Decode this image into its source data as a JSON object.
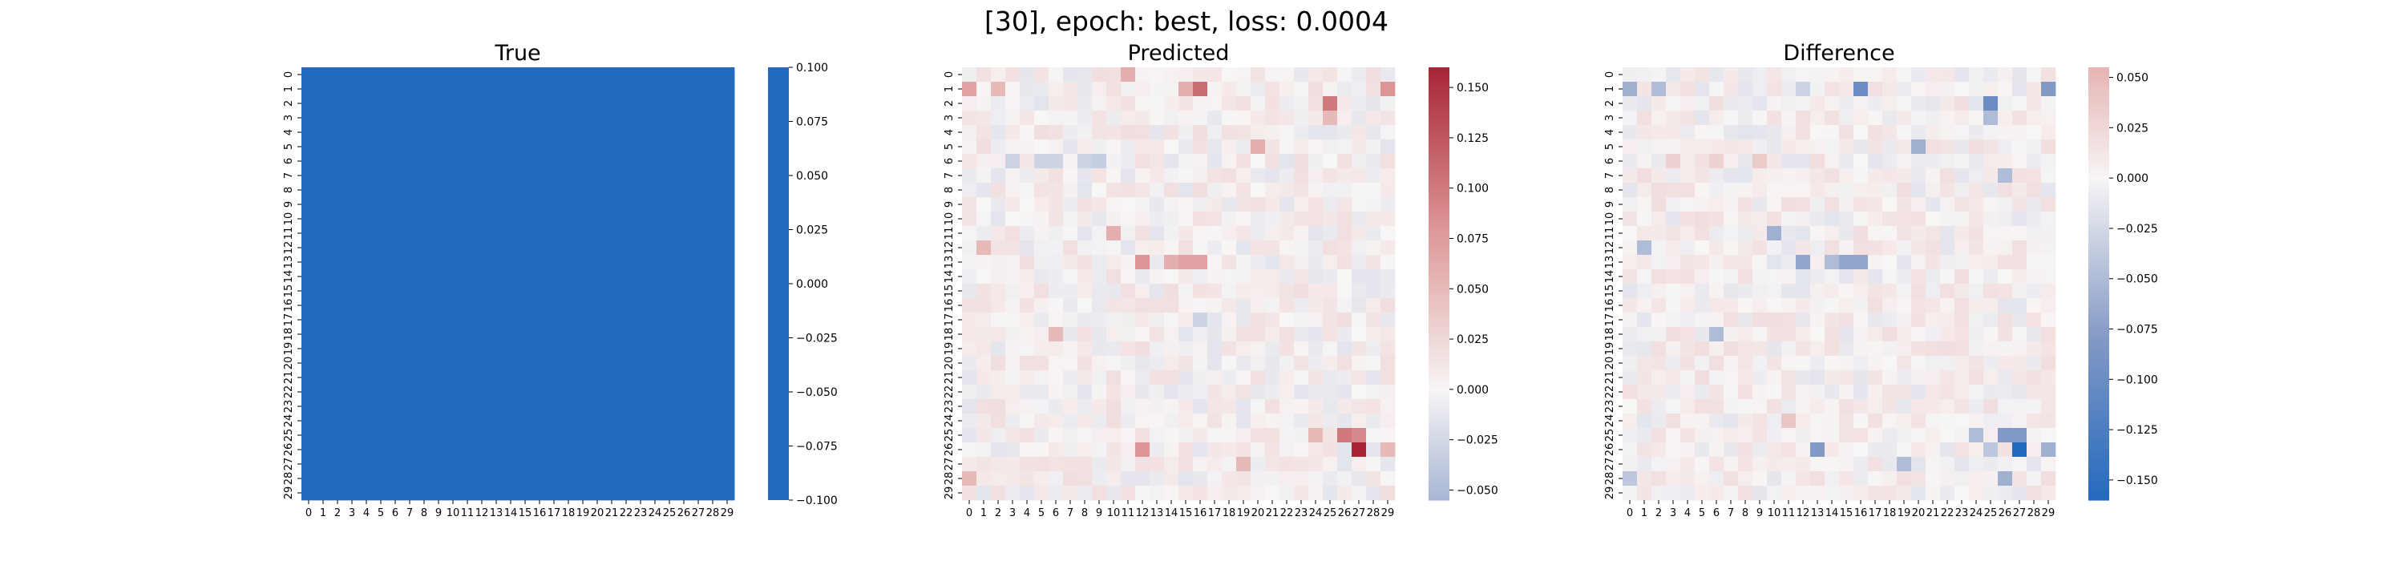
{
  "figure": {
    "suptitle": "[30], epoch: best, loss: 0.0004"
  },
  "chart_data": [
    {
      "type": "heatmap",
      "title": "True",
      "rows": 30,
      "cols": 30,
      "x_ticks": [
        "0",
        "1",
        "2",
        "3",
        "4",
        "5",
        "6",
        "7",
        "8",
        "9",
        "10",
        "11",
        "12",
        "13",
        "14",
        "15",
        "16",
        "17",
        "18",
        "19",
        "20",
        "21",
        "22",
        "23",
        "24",
        "25",
        "26",
        "27",
        "28",
        "29"
      ],
      "y_ticks": [
        "0",
        "1",
        "2",
        "3",
        "4",
        "5",
        "6",
        "7",
        "8",
        "9",
        "10",
        "11",
        "12",
        "13",
        "14",
        "15",
        "16",
        "17",
        "18",
        "19",
        "20",
        "21",
        "22",
        "23",
        "24",
        "25",
        "26",
        "27",
        "28",
        "29"
      ],
      "colormap": "vlag",
      "constant_value": 0.0,
      "cell_color": "#2369bd",
      "vmin": -0.1,
      "vmax": 0.1,
      "colorbar_ticks": [
        "0.100",
        "0.075",
        "0.050",
        "0.025",
        "0.000",
        "−0.025",
        "−0.050",
        "−0.075",
        "−0.100"
      ]
    },
    {
      "type": "heatmap",
      "title": "Predicted",
      "rows": 30,
      "cols": 30,
      "x_ticks": [
        "0",
        "1",
        "2",
        "3",
        "4",
        "5",
        "6",
        "7",
        "8",
        "9",
        "10",
        "11",
        "12",
        "13",
        "14",
        "15",
        "16",
        "17",
        "18",
        "19",
        "20",
        "21",
        "22",
        "23",
        "24",
        "25",
        "26",
        "27",
        "28",
        "29"
      ],
      "y_ticks": [
        "0",
        "1",
        "2",
        "3",
        "4",
        "5",
        "6",
        "7",
        "8",
        "9",
        "10",
        "11",
        "12",
        "13",
        "14",
        "15",
        "16",
        "17",
        "18",
        "19",
        "20",
        "21",
        "22",
        "23",
        "24",
        "25",
        "26",
        "27",
        "28",
        "29"
      ],
      "colormap": "vlag",
      "vmin": -0.055,
      "vmax": 0.16,
      "seed": 7,
      "colorbar_ticks": [
        "0.150",
        "0.125",
        "0.100",
        "0.075",
        "0.050",
        "0.025",
        "0.000",
        "−0.025",
        "−0.050"
      ],
      "highlights": [
        {
          "row": 1,
          "col": 0,
          "value": 0.07
        },
        {
          "row": 1,
          "col": 2,
          "value": 0.05
        },
        {
          "row": 0,
          "col": 11,
          "value": 0.06
        },
        {
          "row": 1,
          "col": 15,
          "value": 0.06
        },
        {
          "row": 1,
          "col": 16,
          "value": 0.11
        },
        {
          "row": 1,
          "col": 29,
          "value": 0.08
        },
        {
          "row": 2,
          "col": 25,
          "value": 0.1
        },
        {
          "row": 3,
          "col": 25,
          "value": 0.05
        },
        {
          "row": 5,
          "col": 20,
          "value": 0.06
        },
        {
          "row": 6,
          "col": 3,
          "value": -0.03
        },
        {
          "row": 6,
          "col": 5,
          "value": -0.03
        },
        {
          "row": 6,
          "col": 6,
          "value": -0.03
        },
        {
          "row": 6,
          "col": 8,
          "value": -0.03
        },
        {
          "row": 6,
          "col": 9,
          "value": -0.035
        },
        {
          "row": 11,
          "col": 10,
          "value": 0.06
        },
        {
          "row": 12,
          "col": 1,
          "value": 0.05
        },
        {
          "row": 13,
          "col": 12,
          "value": 0.08
        },
        {
          "row": 13,
          "col": 14,
          "value": 0.06
        },
        {
          "row": 13,
          "col": 15,
          "value": 0.07
        },
        {
          "row": 13,
          "col": 16,
          "value": 0.07
        },
        {
          "row": 17,
          "col": 16,
          "value": -0.03
        },
        {
          "row": 18,
          "col": 6,
          "value": 0.05
        },
        {
          "row": 25,
          "col": 24,
          "value": 0.05
        },
        {
          "row": 25,
          "col": 26,
          "value": 0.1
        },
        {
          "row": 25,
          "col": 27,
          "value": 0.09
        },
        {
          "row": 26,
          "col": 27,
          "value": 0.16
        },
        {
          "row": 26,
          "col": 12,
          "value": 0.08
        },
        {
          "row": 26,
          "col": 29,
          "value": 0.05
        },
        {
          "row": 27,
          "col": 19,
          "value": 0.05
        },
        {
          "row": 28,
          "col": 0,
          "value": 0.05
        }
      ]
    },
    {
      "type": "heatmap",
      "title": "Difference",
      "rows": 30,
      "cols": 30,
      "x_ticks": [
        "0",
        "1",
        "2",
        "3",
        "4",
        "5",
        "6",
        "7",
        "8",
        "9",
        "10",
        "11",
        "12",
        "13",
        "14",
        "15",
        "16",
        "17",
        "18",
        "19",
        "20",
        "21",
        "22",
        "23",
        "24",
        "25",
        "26",
        "27",
        "28",
        "29"
      ],
      "y_ticks": [
        "0",
        "1",
        "2",
        "3",
        "4",
        "5",
        "6",
        "7",
        "8",
        "9",
        "10",
        "11",
        "12",
        "13",
        "14",
        "15",
        "16",
        "17",
        "18",
        "19",
        "20",
        "21",
        "22",
        "23",
        "24",
        "25",
        "26",
        "27",
        "28",
        "29"
      ],
      "colormap": "vlag",
      "vmin": -0.16,
      "vmax": 0.055,
      "seed": 11,
      "colorbar_ticks": [
        "0.050",
        "0.025",
        "0.000",
        "−0.025",
        "−0.050",
        "−0.075",
        "−0.100",
        "−0.125",
        "−0.150"
      ],
      "highlights": [
        {
          "row": 1,
          "col": 0,
          "value": -0.06
        },
        {
          "row": 1,
          "col": 2,
          "value": -0.05
        },
        {
          "row": 1,
          "col": 16,
          "value": -0.1
        },
        {
          "row": 1,
          "col": 29,
          "value": -0.08
        },
        {
          "row": 1,
          "col": 12,
          "value": -0.03
        },
        {
          "row": 2,
          "col": 25,
          "value": -0.1
        },
        {
          "row": 3,
          "col": 25,
          "value": -0.05
        },
        {
          "row": 5,
          "col": 20,
          "value": -0.06
        },
        {
          "row": 6,
          "col": 3,
          "value": 0.03
        },
        {
          "row": 6,
          "col": 6,
          "value": 0.03
        },
        {
          "row": 6,
          "col": 9,
          "value": 0.035
        },
        {
          "row": 7,
          "col": 26,
          "value": -0.05
        },
        {
          "row": 11,
          "col": 10,
          "value": -0.06
        },
        {
          "row": 12,
          "col": 1,
          "value": -0.05
        },
        {
          "row": 13,
          "col": 12,
          "value": -0.07
        },
        {
          "row": 13,
          "col": 15,
          "value": -0.07
        },
        {
          "row": 13,
          "col": 16,
          "value": -0.07
        },
        {
          "row": 13,
          "col": 14,
          "value": -0.05
        },
        {
          "row": 18,
          "col": 6,
          "value": -0.05
        },
        {
          "row": 24,
          "col": 11,
          "value": 0.04
        },
        {
          "row": 25,
          "col": 24,
          "value": -0.05
        },
        {
          "row": 25,
          "col": 26,
          "value": -0.08
        },
        {
          "row": 25,
          "col": 27,
          "value": -0.08
        },
        {
          "row": 26,
          "col": 27,
          "value": -0.16
        },
        {
          "row": 26,
          "col": 13,
          "value": -0.08
        },
        {
          "row": 26,
          "col": 29,
          "value": -0.06
        },
        {
          "row": 26,
          "col": 25,
          "value": -0.04
        },
        {
          "row": 27,
          "col": 19,
          "value": -0.05
        },
        {
          "row": 28,
          "col": 0,
          "value": -0.04
        },
        {
          "row": 28,
          "col": 26,
          "value": -0.06
        }
      ]
    }
  ]
}
